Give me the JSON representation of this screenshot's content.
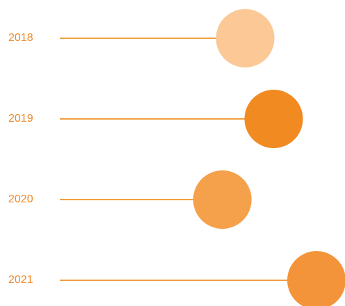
{
  "chart_data": {
    "type": "lollipop",
    "orientation": "horizontal",
    "categories": [
      "2018",
      "2019",
      "2020",
      "2021"
    ],
    "values": [
      65,
      75,
      57,
      90
    ],
    "colors": [
      "#fbc896",
      "#f28a22",
      "#f5a14c",
      "#f4943a"
    ],
    "line_color": "#f0a040",
    "xlim": [
      0,
      100
    ]
  }
}
